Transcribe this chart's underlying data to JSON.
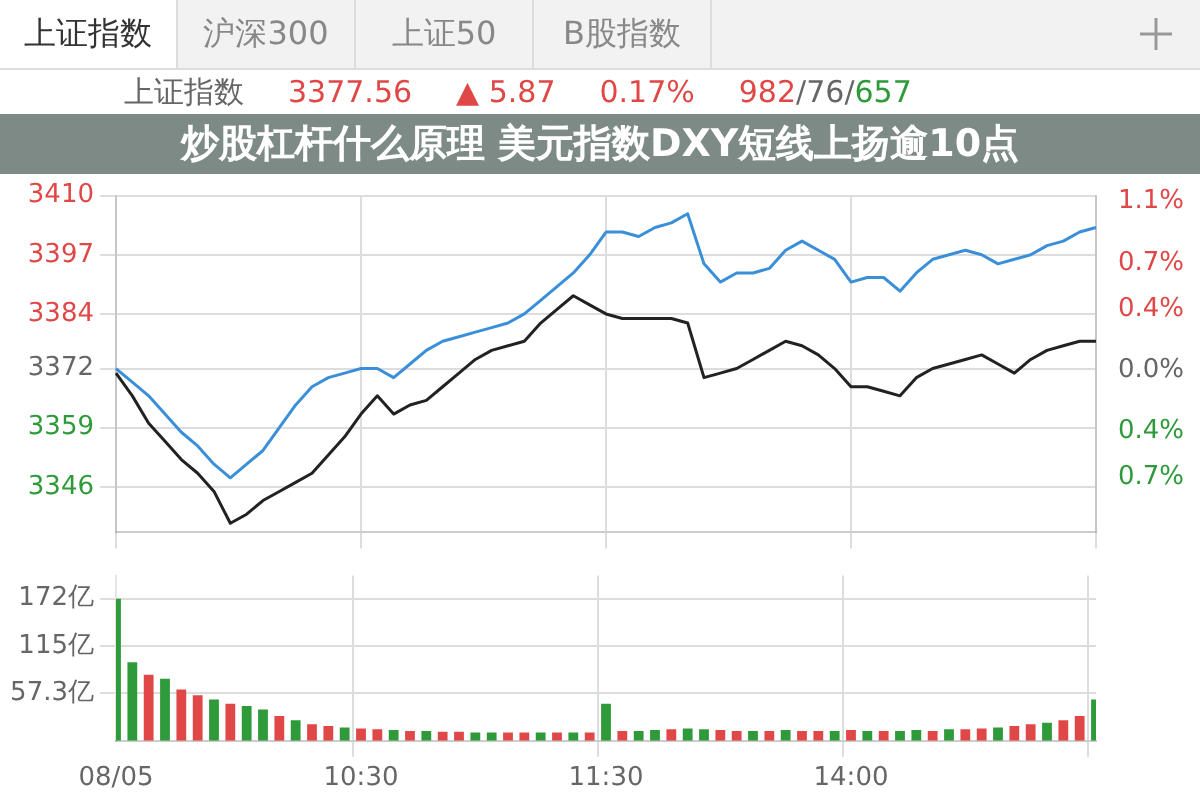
{
  "chart_data": [
    {
      "type": "line",
      "title": "炒股杠杆什么原理 美元指数DXY短线上扬逾10点",
      "annotations": [
        "上证指数",
        "沪深300",
        "上证50",
        "B股指数",
        "上证指数",
        "3377.56",
        "▲ 5.87",
        "0.17%",
        "982/76/657"
      ],
      "categories": [
        null,
        null,
        null,
        null,
        null,
        null,
        null,
        null,
        null,
        null,
        null,
        null,
        null,
        null,
        null,
        null,
        null,
        null,
        null,
        null,
        null,
        null,
        null,
        null,
        null,
        null,
        null,
        null,
        null,
        null,
        null,
        null,
        null,
        null,
        null,
        null,
        null,
        null,
        null,
        null,
        null,
        null,
        null,
        null,
        null,
        null,
        null,
        null,
        null,
        null,
        null,
        null,
        null,
        null,
        null,
        null,
        null,
        null,
        null,
        null,
        null
      ],
      "ylim": [
        3336,
        3410
      ],
      "yticks": [
        3410,
        3397,
        3384,
        3372,
        3359,
        3346
      ],
      "y2lim": [
        -1.06,
        1.14
      ],
      "y2ticks": [
        {
          "value": 1.1,
          "label": "1.1%"
        },
        {
          "value": 0.7,
          "label": "0.7%"
        },
        {
          "value": 0.4,
          "label": "0.4%"
        },
        {
          "value": 0,
          "label": "0.0%"
        },
        {
          "value": -0.4,
          "label": "0.4%"
        },
        {
          "value": -0.7,
          "label": "0.7%"
        }
      ],
      "grid": true,
      "tick_labels": "y",
      "legend": false,
      "series": [
        {
          "color": "#3a8fd8",
          "values": [
            3372,
            3369,
            3366,
            3362,
            3358,
            3355,
            3351,
            3348,
            3351,
            3354,
            3359,
            3364,
            3368,
            3370,
            3371,
            3372,
            3372,
            3370,
            3373,
            3376,
            3378,
            3379,
            3380,
            3381,
            3382,
            3384,
            3387,
            3390,
            3393,
            3397,
            3402,
            3402,
            3401,
            3403,
            3404,
            3406,
            3395,
            3391,
            3393,
            3393,
            3394,
            3398,
            3400,
            3398,
            3396,
            3391,
            3392,
            3392,
            3389,
            3393,
            3396,
            3397,
            3398,
            3397,
            3395,
            3396,
            3397,
            3399,
            3400,
            3402,
            3403
          ]
        },
        {
          "color": "#222222",
          "values": [
            3371,
            3366,
            3360,
            3356,
            3352,
            3349,
            3345,
            3338,
            3340,
            3343,
            3345,
            3347,
            3349,
            3353,
            3357,
            3362,
            3366,
            3362,
            3364,
            3365,
            3368,
            3371,
            3374,
            3376,
            3377,
            3378,
            3382,
            3385,
            3388,
            3386,
            3384,
            3383,
            3383,
            3383,
            3383,
            3382,
            3370,
            3371,
            3372,
            3374,
            3376,
            3378,
            3377,
            3375,
            3372,
            3368,
            3368,
            3367,
            3366,
            3370,
            3372,
            3373,
            3374,
            3375,
            3373,
            3371,
            3374,
            3376,
            3377,
            3378,
            3378
          ]
        }
      ]
    },
    {
      "type": "bar",
      "categories": [
        "08/05",
        null,
        null,
        null,
        null,
        null,
        null,
        null,
        null,
        null,
        null,
        null,
        null,
        null,
        null,
        "10:30",
        null,
        null,
        null,
        null,
        null,
        null,
        null,
        null,
        null,
        null,
        null,
        null,
        null,
        null,
        "11:30",
        null,
        null,
        null,
        null,
        null,
        null,
        null,
        null,
        null,
        null,
        null,
        null,
        null,
        null,
        "14:00",
        null,
        null,
        null,
        null,
        null,
        null,
        null,
        null,
        null,
        null,
        null,
        null,
        null,
        null,
        null
      ],
      "ylim": [
        0,
        200
      ],
      "yticks": [
        {
          "value": 57.3,
          "label": "57.3亿"
        },
        {
          "value": 115,
          "label": "115亿"
        },
        {
          "value": 172,
          "label": "172亿"
        }
      ],
      "grid": true,
      "legend": false,
      "values": [
        172,
        95,
        80,
        75,
        62,
        55,
        50,
        45,
        42,
        38,
        30,
        25,
        20,
        18,
        16,
        15,
        14,
        13,
        12,
        12,
        11,
        11,
        10,
        10,
        10,
        10,
        10,
        10,
        10,
        10,
        45,
        12,
        12,
        13,
        14,
        15,
        14,
        13,
        12,
        12,
        12,
        13,
        12,
        12,
        12,
        13,
        12,
        12,
        12,
        13,
        12,
        14,
        14,
        15,
        16,
        18,
        20,
        22,
        25,
        30,
        50
      ],
      "colors": [
        "#2e9a3a",
        "#2e9a3a",
        "#e04848",
        "#2e9a3a",
        "#e04848",
        "#e04848",
        "#2e9a3a",
        "#e04848",
        "#2e9a3a",
        "#2e9a3a",
        "#e04848",
        "#2e9a3a",
        "#e04848",
        "#e04848",
        "#2e9a3a",
        "#e04848",
        "#e04848",
        "#2e9a3a",
        "#e04848",
        "#2e9a3a",
        "#e04848",
        "#e04848",
        "#2e9a3a",
        "#2e9a3a",
        "#e04848",
        "#e04848",
        "#2e9a3a",
        "#e04848",
        "#2e9a3a",
        "#e04848",
        "#2e9a3a",
        "#e04848",
        "#2e9a3a",
        "#2e9a3a",
        "#e04848",
        "#2e9a3a",
        "#2e9a3a",
        "#e04848",
        "#e04848",
        "#2e9a3a",
        "#e04848",
        "#2e9a3a",
        "#e04848",
        "#e04848",
        "#2e9a3a",
        "#e04848",
        "#2e9a3a",
        "#e04848",
        "#2e9a3a",
        "#2e9a3a",
        "#e04848",
        "#2e9a3a",
        "#e04848",
        "#e04848",
        "#2e9a3a",
        "#e04848",
        "#e04848",
        "#2e9a3a",
        "#e04848",
        "#e04848",
        "#2e9a3a"
      ]
    }
  ]
}
